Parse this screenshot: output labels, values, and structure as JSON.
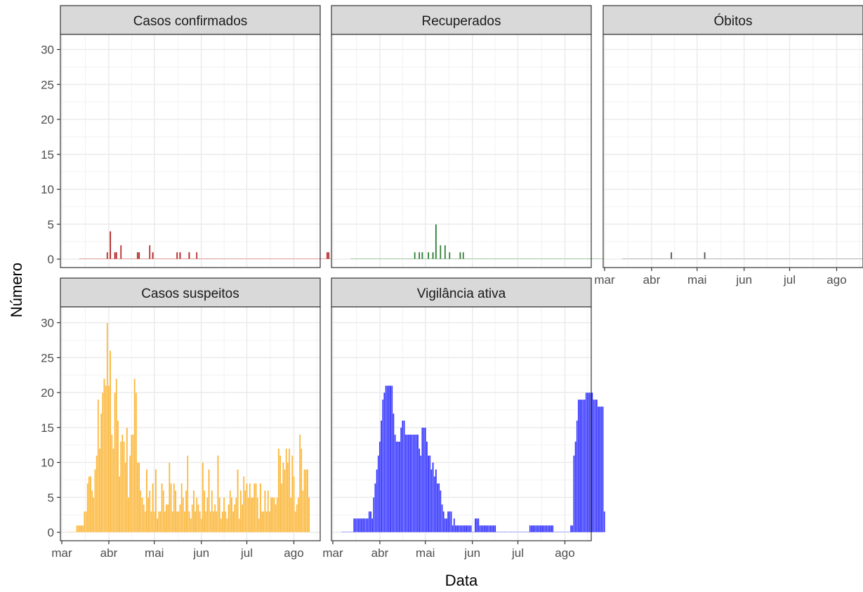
{
  "chart_data": {
    "type": "bar",
    "facets": [
      "Casos confirmados",
      "Recuperados",
      "Óbitos",
      "Casos suspeitos",
      "Vigilância ativa"
    ],
    "xlabel": "Data",
    "ylabel": "Número",
    "x_tick_labels": [
      "mar",
      "abr",
      "mai",
      "jun",
      "jul",
      "ago"
    ],
    "y_ticks": [
      0,
      5,
      10,
      15,
      20,
      25,
      30
    ],
    "ylim": [
      0,
      30
    ],
    "grid": true,
    "legend": "none",
    "date_axis_start": "2020-03-01",
    "series": [
      {
        "name": "Casos confirmados",
        "color": "#b22222",
        "start_date": "2020-03-13",
        "values": [
          0,
          0,
          0,
          0,
          0,
          0,
          0,
          0,
          0,
          0,
          0,
          0,
          0,
          0,
          0,
          0,
          0,
          0,
          1,
          0,
          4,
          0,
          0,
          1,
          1,
          0,
          0,
          2,
          0,
          0,
          0,
          0,
          0,
          0,
          0,
          0,
          0,
          0,
          1,
          1,
          0,
          0,
          0,
          0,
          0,
          0,
          2,
          0,
          1,
          0,
          0,
          0,
          0,
          0,
          0,
          0,
          0,
          0,
          0,
          0,
          0,
          0,
          0,
          0,
          1,
          0,
          1,
          0,
          0,
          0,
          0,
          0,
          1,
          0,
          0,
          0,
          0,
          1,
          0,
          0,
          0,
          0,
          0,
          0,
          0,
          0,
          0,
          0,
          0,
          0,
          0,
          0,
          0,
          0,
          0,
          0,
          0,
          0,
          0,
          0,
          0,
          0,
          0,
          0,
          0,
          0,
          0,
          0,
          0,
          0,
          0,
          0,
          0,
          0,
          0,
          0,
          0,
          0,
          0,
          0,
          0,
          0,
          0,
          0,
          0,
          0,
          0,
          0,
          0,
          0,
          0,
          0,
          0,
          0,
          0,
          0,
          0,
          0,
          0,
          0,
          0,
          0,
          0,
          0,
          0,
          0,
          0,
          0,
          0,
          0,
          0,
          0,
          0,
          0,
          0,
          0,
          0,
          0,
          0,
          0,
          0,
          0,
          0,
          1,
          1,
          0,
          0,
          0,
          0,
          0,
          0,
          0,
          0,
          0,
          0,
          0,
          0,
          0,
          0,
          0,
          0,
          0,
          0,
          0
        ]
      },
      {
        "name": "Recuperados",
        "color": "#2e7d32",
        "start_date": "2020-03-13",
        "values": [
          0,
          0,
          0,
          0,
          0,
          0,
          0,
          0,
          0,
          0,
          0,
          0,
          0,
          0,
          0,
          0,
          0,
          0,
          0,
          0,
          0,
          0,
          0,
          0,
          0,
          0,
          0,
          0,
          0,
          0,
          0,
          0,
          0,
          0,
          0,
          0,
          0,
          0,
          0,
          0,
          0,
          0,
          1,
          0,
          0,
          1,
          0,
          1,
          0,
          0,
          0,
          1,
          0,
          0,
          1,
          0,
          5,
          0,
          0,
          2,
          0,
          0,
          2,
          0,
          0,
          1,
          0,
          0,
          0,
          0,
          0,
          0,
          1,
          0,
          1,
          0,
          0,
          0,
          0,
          0,
          0,
          0,
          0,
          0,
          0,
          0,
          0,
          0,
          0,
          0,
          0,
          0,
          0,
          0,
          0,
          0,
          0,
          0,
          0,
          0,
          0,
          0,
          0,
          0,
          0,
          0,
          0,
          0,
          0,
          0,
          0,
          0,
          0,
          0,
          0,
          0,
          0,
          0,
          0,
          0,
          0,
          0,
          0,
          0,
          0,
          0,
          0,
          0,
          0,
          0,
          0,
          0,
          0,
          0,
          0,
          0,
          0,
          0,
          0,
          0,
          0,
          0,
          0,
          0,
          0,
          0,
          0,
          0,
          0,
          0,
          0,
          0,
          0,
          0,
          0,
          0,
          0,
          0,
          0,
          0,
          0,
          0,
          0,
          0,
          0,
          0,
          0,
          0,
          0,
          0,
          0,
          0,
          0,
          0,
          0,
          0,
          0,
          0,
          0,
          0,
          0,
          0,
          0,
          1
        ]
      },
      {
        "name": "Óbitos",
        "color": "#555555",
        "start_date": "2020-03-13",
        "values": [
          0,
          0,
          0,
          0,
          0,
          0,
          0,
          0,
          0,
          0,
          0,
          0,
          0,
          0,
          0,
          0,
          0,
          0,
          0,
          0,
          0,
          0,
          0,
          0,
          0,
          0,
          0,
          0,
          0,
          0,
          0,
          0,
          1,
          0,
          0,
          0,
          0,
          0,
          0,
          0,
          0,
          0,
          0,
          0,
          0,
          0,
          0,
          0,
          0,
          0,
          0,
          0,
          0,
          0,
          1,
          0,
          0,
          0,
          0,
          0,
          0,
          0,
          0,
          0,
          0,
          0,
          0,
          0,
          0,
          0,
          0,
          0,
          0,
          0,
          0,
          0,
          0,
          0,
          0,
          0,
          0,
          0,
          0,
          0,
          0,
          0,
          0,
          0,
          0,
          0,
          0,
          0,
          0,
          0,
          0,
          0,
          0,
          0,
          0,
          0,
          0,
          0,
          0,
          0,
          0,
          0,
          0,
          0,
          0,
          0,
          0,
          0,
          0,
          0,
          0,
          0,
          0,
          0,
          0,
          0,
          0,
          0,
          0,
          0,
          0,
          0,
          0,
          0,
          0,
          0,
          0,
          0,
          0,
          0,
          0,
          0,
          0,
          0,
          0,
          0,
          0,
          0,
          0,
          0,
          0,
          0,
          0,
          0,
          0,
          0,
          0,
          0,
          0,
          0,
          0,
          0,
          0,
          0,
          0,
          0,
          0,
          0,
          0,
          0,
          0,
          0,
          0,
          0,
          0,
          0,
          0,
          0,
          0,
          0,
          0,
          0,
          0,
          0,
          0,
          0,
          0,
          0,
          0,
          0,
          0,
          0,
          0,
          0,
          0,
          0,
          0,
          0,
          0
        ]
      },
      {
        "name": "Casos suspeitos",
        "color": "#fbb73a",
        "start_date": "2020-03-06",
        "values": [
          0,
          0,
          0,
          0,
          0,
          1,
          1,
          1,
          1,
          1,
          3,
          3,
          7,
          8,
          8,
          6,
          5,
          9,
          11,
          19,
          12,
          17,
          20,
          22,
          21,
          30,
          21,
          26,
          14,
          12,
          20,
          22,
          16,
          8,
          13,
          14,
          13,
          10,
          15,
          5,
          11,
          14,
          14,
          22,
          20,
          10,
          10,
          6,
          5,
          4,
          3,
          9,
          5,
          6,
          3,
          7,
          3,
          9,
          2,
          3,
          3,
          7,
          6,
          3,
          4,
          4,
          10,
          7,
          3,
          7,
          6,
          3,
          3,
          4,
          7,
          5,
          3,
          6,
          11,
          3,
          2,
          4,
          6,
          3,
          5,
          4,
          3,
          2,
          10,
          6,
          3,
          5,
          9,
          3,
          6,
          3,
          4,
          3,
          11,
          5,
          2,
          3,
          5,
          3,
          2,
          4,
          6,
          5,
          3,
          4,
          5,
          9,
          2,
          6,
          4,
          8,
          6,
          7,
          5,
          7,
          5,
          5,
          7,
          7,
          5,
          2,
          7,
          3,
          3,
          6,
          3,
          6,
          3,
          5,
          5,
          5,
          4,
          5,
          12,
          11,
          7,
          10,
          9,
          12,
          10,
          12,
          5,
          11,
          8,
          3,
          4,
          5,
          14,
          12,
          6,
          9,
          9,
          9,
          5
        ]
      },
      {
        "name": "Vigilância ativa",
        "color": "#3333ff",
        "start_date": "2020-03-07",
        "values": [
          0,
          0,
          0,
          0,
          0,
          0,
          0,
          0,
          2,
          2,
          2,
          2,
          2,
          2,
          2,
          2,
          2,
          2,
          3,
          3,
          2,
          5,
          7,
          9,
          11,
          13,
          16,
          19,
          20,
          21,
          21,
          21,
          21,
          21,
          17,
          14,
          13,
          13,
          13,
          15,
          16,
          16,
          14,
          14,
          14,
          14,
          14,
          14,
          14,
          14,
          14,
          12,
          11,
          15,
          15,
          15,
          13,
          11,
          11,
          9,
          10,
          8,
          9,
          7,
          7,
          6,
          4,
          3,
          2,
          2,
          3,
          3,
          3,
          1,
          2,
          1,
          1,
          1,
          1,
          1,
          1,
          1,
          1,
          1,
          1,
          1,
          0,
          0,
          2,
          2,
          2,
          1,
          1,
          1,
          1,
          1,
          1,
          1,
          1,
          1,
          1,
          1,
          0,
          0,
          0,
          0,
          0,
          0,
          0,
          0,
          0,
          0,
          0,
          0,
          0,
          0,
          0,
          0,
          0,
          0,
          0,
          0,
          0,
          0,
          1,
          1,
          1,
          1,
          1,
          1,
          1,
          1,
          1,
          1,
          1,
          1,
          1,
          1,
          1,
          1,
          0,
          0,
          0,
          0,
          0,
          0,
          0,
          0,
          0,
          0,
          0,
          1,
          1,
          11,
          13,
          16,
          19,
          19,
          19,
          19,
          19,
          20,
          20,
          20,
          20,
          20,
          19,
          19,
          19,
          18,
          18,
          18,
          18,
          3
        ]
      }
    ]
  }
}
